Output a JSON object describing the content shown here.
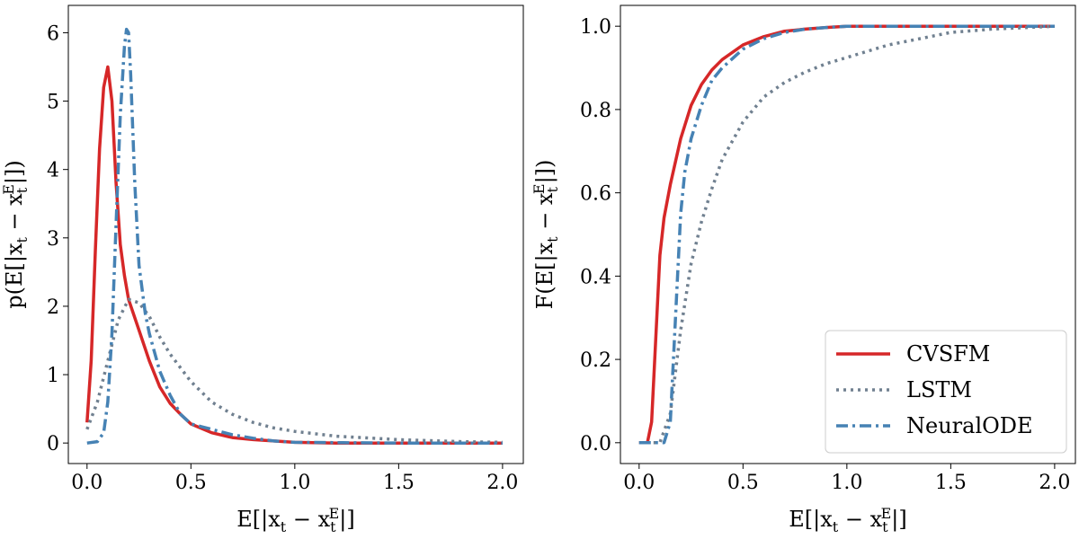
{
  "chart_data": [
    {
      "type": "line",
      "title": "",
      "xlabel": "E[|x_t − x_t^E|]",
      "ylabel": "p(E[|x_t − x_t^E|])",
      "xlim": [
        -0.09,
        2.1
      ],
      "ylim": [
        -0.3,
        6.4
      ],
      "xticks": [
        "0.0",
        "0.5",
        "1.0",
        "1.5",
        "2.0"
      ],
      "yticks": [
        "0",
        "1",
        "2",
        "3",
        "4",
        "5",
        "6"
      ],
      "grid": false,
      "series": [
        {
          "name": "CVSFM",
          "color": "#d62728",
          "style": "solid",
          "x": [
            0.0,
            0.02,
            0.04,
            0.06,
            0.08,
            0.1,
            0.12,
            0.14,
            0.16,
            0.18,
            0.2,
            0.25,
            0.3,
            0.35,
            0.4,
            0.45,
            0.5,
            0.6,
            0.7,
            0.8,
            0.9,
            1.0,
            1.2,
            1.5,
            2.0
          ],
          "y": [
            0.3,
            1.2,
            2.8,
            4.3,
            5.2,
            5.5,
            5.0,
            3.8,
            2.9,
            2.45,
            2.1,
            1.65,
            1.2,
            0.82,
            0.58,
            0.42,
            0.28,
            0.15,
            0.08,
            0.05,
            0.03,
            0.01,
            0.0,
            0.0,
            0.0
          ]
        },
        {
          "name": "LSTM",
          "color": "#708090",
          "style": "dotted",
          "x": [
            0.0,
            0.05,
            0.1,
            0.15,
            0.2,
            0.25,
            0.3,
            0.35,
            0.4,
            0.5,
            0.6,
            0.7,
            0.8,
            0.9,
            1.0,
            1.2,
            1.5,
            1.8,
            2.0
          ],
          "y": [
            0.2,
            0.6,
            1.2,
            1.8,
            2.1,
            2.05,
            1.85,
            1.55,
            1.3,
            0.9,
            0.6,
            0.42,
            0.3,
            0.22,
            0.17,
            0.1,
            0.05,
            0.02,
            0.01
          ]
        },
        {
          "name": "NeuralODE",
          "color": "#4682b4",
          "style": "dashdot",
          "x": [
            0.0,
            0.05,
            0.08,
            0.1,
            0.12,
            0.14,
            0.16,
            0.18,
            0.19,
            0.2,
            0.21,
            0.23,
            0.25,
            0.28,
            0.3,
            0.35,
            0.4,
            0.45,
            0.5,
            0.55,
            0.6,
            0.7,
            0.8,
            0.9,
            1.0,
            1.5,
            2.0
          ],
          "y": [
            0.0,
            0.02,
            0.15,
            0.6,
            1.6,
            3.2,
            4.8,
            5.8,
            6.05,
            6.0,
            5.4,
            3.8,
            2.6,
            1.9,
            1.6,
            1.05,
            0.7,
            0.42,
            0.28,
            0.24,
            0.2,
            0.12,
            0.07,
            0.03,
            0.01,
            0.0,
            0.0
          ]
        }
      ]
    },
    {
      "type": "line",
      "title": "",
      "xlabel": "E[|x_t − x_t^E|]",
      "ylabel": "F(E[|x_t − x_t^E|])",
      "xlim": [
        -0.09,
        2.1
      ],
      "ylim": [
        -0.05,
        1.05
      ],
      "xticks": [
        "0.0",
        "0.5",
        "1.0",
        "1.5",
        "2.0"
      ],
      "yticks": [
        "0.0",
        "0.2",
        "0.4",
        "0.6",
        "0.8",
        "1.0"
      ],
      "grid": false,
      "legend": {
        "position": "bottom-right",
        "entries": [
          "CVSFM",
          "LSTM",
          "NeuralODE"
        ]
      },
      "series": [
        {
          "name": "CVSFM",
          "color": "#d62728",
          "style": "solid",
          "x": [
            0.0,
            0.04,
            0.06,
            0.08,
            0.1,
            0.12,
            0.15,
            0.2,
            0.25,
            0.3,
            0.35,
            0.4,
            0.5,
            0.6,
            0.7,
            0.8,
            0.9,
            1.0,
            1.5,
            2.0
          ],
          "y": [
            0.0,
            0.0,
            0.05,
            0.25,
            0.45,
            0.54,
            0.62,
            0.73,
            0.81,
            0.86,
            0.895,
            0.92,
            0.955,
            0.975,
            0.988,
            0.993,
            0.997,
            1.0,
            1.0,
            1.0
          ]
        },
        {
          "name": "LSTM",
          "color": "#708090",
          "style": "dotted",
          "x": [
            0.0,
            0.1,
            0.15,
            0.2,
            0.25,
            0.3,
            0.35,
            0.4,
            0.5,
            0.6,
            0.7,
            0.8,
            0.9,
            1.0,
            1.2,
            1.4,
            1.5,
            1.7,
            2.0
          ],
          "y": [
            0.0,
            0.0,
            0.07,
            0.27,
            0.43,
            0.53,
            0.61,
            0.68,
            0.77,
            0.83,
            0.865,
            0.89,
            0.91,
            0.925,
            0.955,
            0.975,
            0.985,
            0.993,
            1.0
          ]
        },
        {
          "name": "NeuralODE",
          "color": "#4682b4",
          "style": "dashdot",
          "x": [
            0.0,
            0.12,
            0.15,
            0.18,
            0.2,
            0.22,
            0.25,
            0.3,
            0.35,
            0.4,
            0.5,
            0.6,
            0.7,
            0.8,
            0.9,
            1.0,
            1.5,
            2.0
          ],
          "y": [
            0.0,
            0.0,
            0.05,
            0.35,
            0.55,
            0.65,
            0.73,
            0.81,
            0.87,
            0.9,
            0.945,
            0.97,
            0.985,
            0.993,
            0.997,
            1.0,
            1.0,
            1.0
          ]
        }
      ]
    }
  ]
}
